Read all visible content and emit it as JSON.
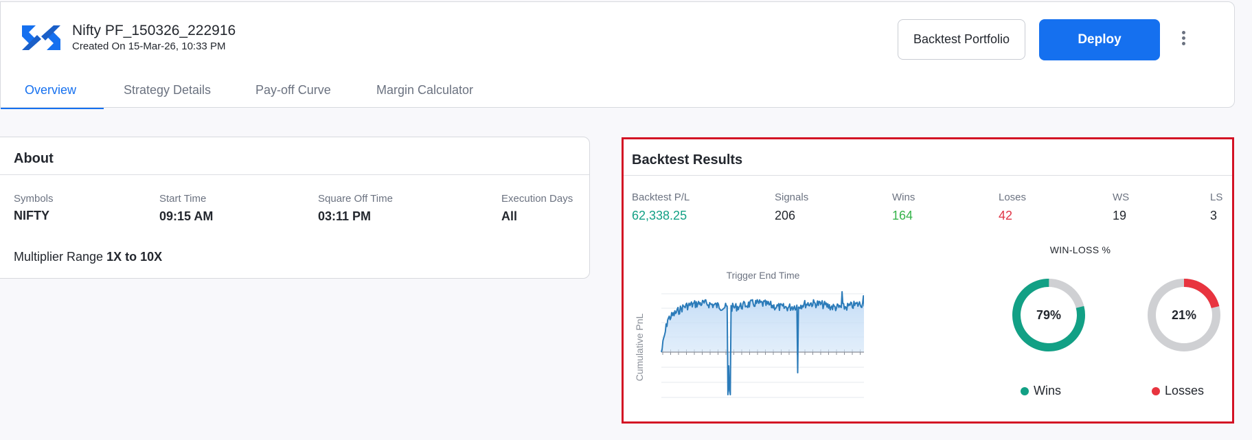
{
  "header": {
    "title": "Nifty PF_150326_222916",
    "subtitle": "Created On 15-Mar-26, 10:33 PM",
    "backtest_label": "Backtest Portfolio",
    "deploy_label": "Deploy",
    "tabs": [
      {
        "label": "Overview",
        "active": true
      },
      {
        "label": "Strategy Details",
        "active": false
      },
      {
        "label": "Pay-off Curve",
        "active": false
      },
      {
        "label": "Margin Calculator",
        "active": false
      }
    ]
  },
  "about": {
    "title": "About",
    "fields": [
      {
        "label": "Symbols",
        "value": "NIFTY"
      },
      {
        "label": "Start Time",
        "value": "09:15 AM"
      },
      {
        "label": "Square Off Time",
        "value": "03:11 PM"
      },
      {
        "label": "Execution Days",
        "value": "All"
      }
    ],
    "multiplier_label": "Multiplier Range",
    "multiplier_value": "1X to 10X"
  },
  "results": {
    "title": "Backtest Results",
    "stats": [
      {
        "label": "Backtest P/L",
        "value": "62,338.25",
        "color": "#12a085"
      },
      {
        "label": "Signals",
        "value": "206",
        "color": "#23272e"
      },
      {
        "label": "Wins",
        "value": "164",
        "color": "#35b34a"
      },
      {
        "label": "Loses",
        "value": "42",
        "color": "#e03546"
      },
      {
        "label": "WS",
        "value": "19",
        "color": "#23272e"
      },
      {
        "label": "LS",
        "value": "3",
        "color": "#23272e"
      }
    ],
    "chart": {
      "title": "Trigger End Time",
      "ylabel": "Cumulative PnL"
    },
    "donut_title": "WIN-LOSS %",
    "wins_pct": 79,
    "wins_pct_label": "79%",
    "losses_pct": 21,
    "losses_pct_label": "21%",
    "wins_legend": "Wins",
    "losses_legend": "Losses",
    "colors": {
      "wins": "#12a085",
      "losses": "#e8343f",
      "track": "#cfd0d3",
      "line": "#2b7bb9"
    }
  }
}
